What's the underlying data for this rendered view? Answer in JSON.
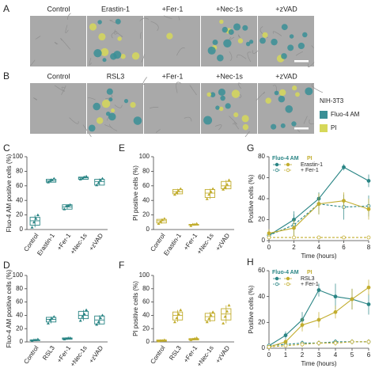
{
  "images": [
    {
      "panel": "A",
      "labels": [
        "Control",
        "Erastin-1",
        "+Fer-1",
        "+Nec-1s",
        "+zVAD"
      ]
    },
    {
      "panel": "B",
      "labels": [
        "Control",
        "RSL3",
        "+Fer-1",
        "+Nec-1s",
        "+zVAD"
      ]
    }
  ],
  "image_legend": {
    "title": "NIH-3T3",
    "items": [
      {
        "name": "Fluo-4 AM",
        "color": "#3a8f96"
      },
      {
        "name": "PI",
        "color": "#d6d85a"
      }
    ]
  },
  "chart_data": [
    {
      "type": "box",
      "panel": "C",
      "ylabel": "Fluo-4 AM positive cells (%)",
      "color": "#2a8585",
      "categories": [
        "Control",
        "Erastin-1",
        "+Fer-1",
        "+Nec-1s",
        "+zVAD"
      ],
      "boxes": [
        [
          3,
          6,
          12,
          17,
          20
        ],
        [
          65,
          65,
          67,
          69,
          70
        ],
        [
          28,
          28,
          31,
          34,
          34
        ],
        [
          69,
          69,
          71,
          72,
          73
        ],
        [
          61,
          61,
          66,
          69,
          70
        ]
      ],
      "values": [
        [
          3,
          10,
          15,
          20
        ],
        [
          65,
          67,
          68,
          70
        ],
        [
          28,
          32,
          33,
          34
        ],
        [
          69,
          70,
          72,
          73
        ],
        [
          61,
          64,
          68,
          70
        ]
      ],
      "ylim": [
        0,
        100
      ],
      "yticks": [
        0,
        20,
        40,
        60,
        80,
        100
      ]
    },
    {
      "type": "box",
      "panel": "E",
      "ylabel": "PI positive cells (%)",
      "color": "#c2ad2e",
      "categories": [
        "Control",
        "Erastin-1",
        "+Fer-1",
        "+Nec-1s",
        "+zVAD"
      ],
      "boxes": [
        [
          8,
          9,
          12,
          14,
          15
        ],
        [
          48,
          49,
          52,
          55,
          56
        ],
        [
          5,
          6,
          7,
          7,
          8
        ],
        [
          42,
          44,
          50,
          55,
          56
        ],
        [
          55,
          56,
          60,
          66,
          68
        ]
      ],
      "values": [
        [
          8,
          11,
          13,
          15
        ],
        [
          48,
          51,
          53,
          56
        ],
        [
          5,
          7,
          7,
          8
        ],
        [
          42,
          48,
          52,
          56
        ],
        [
          55,
          58,
          62,
          68
        ]
      ],
      "ylim": [
        0,
        100
      ],
      "yticks": [
        0,
        20,
        40,
        60,
        80,
        100
      ]
    },
    {
      "type": "line",
      "panel": "G",
      "xlabel": "Time (hours)",
      "ylabel": "Positive cells (%)",
      "x": [
        0,
        2,
        4,
        6,
        8
      ],
      "xlim": [
        0,
        8
      ],
      "xticks": [
        0,
        2,
        4,
        6,
        8
      ],
      "ylim": [
        0,
        80
      ],
      "yticks": [
        0,
        20,
        40,
        60,
        80
      ],
      "legend": {
        "headers": [
          "Fluo-4 AM",
          "PI"
        ],
        "entries": [
          "Erastin-1",
          "+ Fer-1"
        ]
      },
      "series": [
        {
          "color": "#2a8585",
          "filled": true,
          "dashed": false,
          "values": [
            5,
            20,
            40,
            70,
            57
          ],
          "errors": [
            3,
            8,
            6,
            3,
            6
          ]
        },
        {
          "color": "#2a8585",
          "filled": false,
          "dashed": true,
          "values": [
            5,
            15,
            35,
            32,
            33
          ],
          "errors": [
            3,
            10,
            10,
            12,
            10
          ]
        },
        {
          "color": "#c2ad2e",
          "filled": true,
          "dashed": false,
          "values": [
            7,
            12,
            35,
            38,
            30
          ],
          "errors": [
            4,
            8,
            10,
            8,
            10
          ]
        },
        {
          "color": "#c2ad2e",
          "filled": false,
          "dashed": true,
          "values": [
            3,
            3,
            3,
            3,
            3
          ],
          "errors": [
            1,
            1,
            1,
            1,
            1
          ]
        }
      ]
    },
    {
      "type": "box",
      "panel": "D",
      "ylabel": "Fluo-4 AM positive cells (%)",
      "color": "#2a8585",
      "categories": [
        "Control",
        "RSL3",
        "+Fer-1",
        "+Nec-1s",
        "+zVAD"
      ],
      "boxes": [
        [
          2,
          2,
          3,
          3,
          4
        ],
        [
          28,
          30,
          34,
          37,
          38
        ],
        [
          4,
          4,
          5,
          6,
          6
        ],
        [
          32,
          35,
          40,
          46,
          48
        ],
        [
          26,
          27,
          33,
          39,
          40
        ]
      ],
      "values": [
        [
          2,
          3,
          3,
          4
        ],
        [
          28,
          33,
          35,
          38
        ],
        [
          4,
          5,
          6,
          6
        ],
        [
          32,
          38,
          42,
          48
        ],
        [
          26,
          30,
          36,
          40
        ]
      ],
      "ylim": [
        0,
        100
      ],
      "yticks": [
        0,
        20,
        40,
        60,
        80,
        100
      ]
    },
    {
      "type": "box",
      "panel": "F",
      "ylabel": "PI positive cells (%)",
      "color": "#c2ad2e",
      "categories": [
        "Control",
        "RSL3",
        "+Fer-1",
        "+Nec-1s",
        "+zVAD"
      ],
      "boxes": [
        [
          1,
          1,
          2,
          3,
          3
        ],
        [
          30,
          33,
          40,
          45,
          48
        ],
        [
          3,
          3,
          4,
          5,
          6
        ],
        [
          30,
          32,
          38,
          43,
          45
        ],
        [
          28,
          33,
          42,
          50,
          55
        ]
      ],
      "values": [
        [
          1,
          2,
          2,
          3
        ],
        [
          30,
          36,
          42,
          48
        ],
        [
          3,
          4,
          5,
          6
        ],
        [
          30,
          35,
          40,
          45
        ],
        [
          28,
          38,
          46,
          55
        ]
      ],
      "ylim": [
        0,
        100
      ],
      "yticks": [
        0,
        20,
        40,
        60,
        80,
        100
      ]
    },
    {
      "type": "line",
      "panel": "H",
      "xlabel": "Time (hours)",
      "ylabel": "Positive cells (%)",
      "x": [
        0,
        1,
        2,
        3,
        4,
        5,
        6
      ],
      "xlim": [
        0,
        6
      ],
      "xticks": [
        0,
        1,
        2,
        3,
        4,
        5,
        6
      ],
      "ylim": [
        0,
        60
      ],
      "yticks": [
        0,
        20,
        40,
        60
      ],
      "legend": {
        "headers": [
          "Fluo-4 AM",
          "PI"
        ],
        "entries": [
          "RSL3",
          "+ Fer-1"
        ]
      },
      "series": [
        {
          "color": "#2a8585",
          "filled": true,
          "dashed": false,
          "values": [
            2,
            10,
            22,
            45,
            40,
            38,
            34
          ],
          "errors": [
            1,
            3,
            6,
            5,
            10,
            8,
            8
          ]
        },
        {
          "color": "#2a8585",
          "filled": false,
          "dashed": true,
          "values": [
            2,
            3,
            4,
            4,
            5,
            5,
            5
          ],
          "errors": [
            1,
            1,
            2,
            2,
            2,
            2,
            2
          ]
        },
        {
          "color": "#c2ad2e",
          "filled": true,
          "dashed": false,
          "values": [
            1,
            5,
            18,
            22,
            28,
            38,
            47
          ],
          "errors": [
            1,
            2,
            5,
            6,
            5,
            8,
            6
          ]
        },
        {
          "color": "#c2ad2e",
          "filled": false,
          "dashed": true,
          "values": [
            1,
            2,
            3,
            4,
            4,
            5,
            5
          ],
          "errors": [
            1,
            1,
            2,
            2,
            2,
            2,
            2
          ]
        }
      ]
    }
  ]
}
